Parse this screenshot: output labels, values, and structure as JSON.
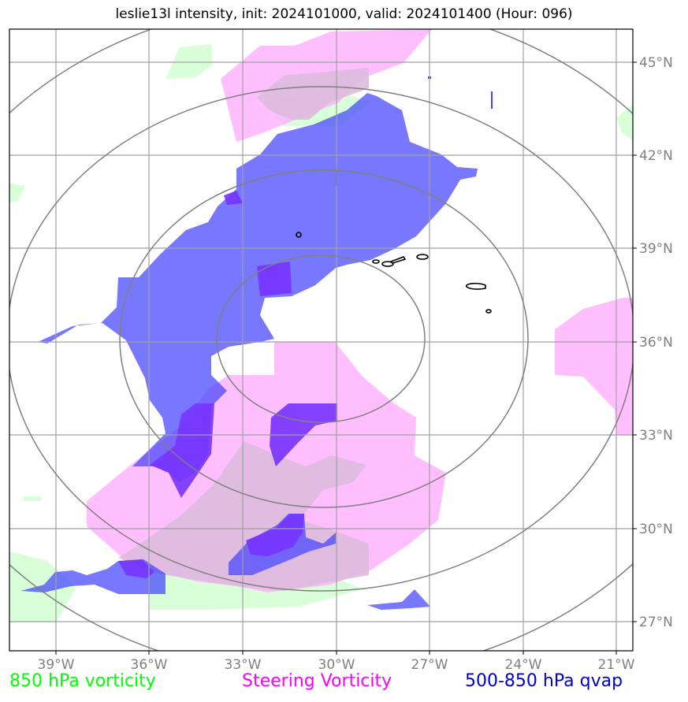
{
  "title": "leslie13l intensity, init: 2024101000, valid: 2024101400 (Hour: 096)",
  "legend": {
    "vort850": {
      "label": "850 hPa vorticity",
      "color": "#00ff00"
    },
    "steering": {
      "label": "Steering Vorticity",
      "color": "#ff00ff"
    },
    "qvap": {
      "label": "500-850 hPa qvap",
      "color": "#0000cc"
    }
  },
  "axes": {
    "lat_labels": [
      "45°N",
      "42°N",
      "39°N",
      "36°N",
      "33°N",
      "30°N",
      "27°N"
    ],
    "lon_labels": [
      "39°W",
      "36°W",
      "33°W",
      "30°W",
      "27°W",
      "24°W",
      "21°W"
    ]
  },
  "colors": {
    "vort850_fill": "#ccffcc",
    "steering_fill": "#ffaaff",
    "qvap_fill": "#4444ff",
    "overlap_fill": "#7733ff",
    "range_rings": "#808080",
    "grid": "#a0a0a0"
  }
}
